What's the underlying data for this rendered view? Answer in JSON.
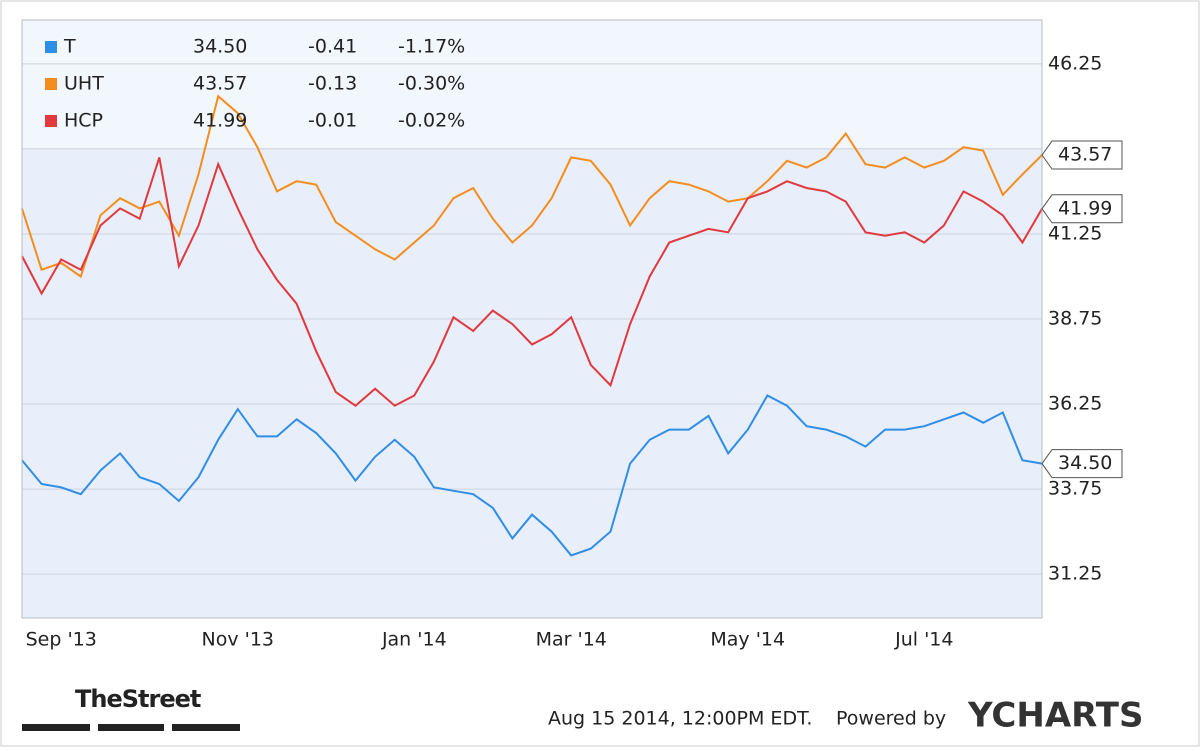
{
  "chart_data": {
    "type": "line",
    "categories": [
      null,
      null,
      "Sep '13",
      null,
      null,
      null,
      null,
      null,
      null,
      null,
      null,
      "Nov '13",
      null,
      null,
      null,
      null,
      null,
      null,
      null,
      null,
      "Jan '14",
      null,
      null,
      null,
      null,
      null,
      null,
      null,
      "Mar '14",
      null,
      null,
      null,
      null,
      null,
      null,
      null,
      null,
      "May '14",
      null,
      null,
      null,
      null,
      null,
      null,
      null,
      null,
      "Jul '14",
      null,
      null,
      null,
      null,
      null,
      null
    ],
    "ylim": [
      29.96,
      47.54
    ],
    "yticks": [
      31.25,
      33.75,
      36.25,
      38.75,
      41.25,
      43.75,
      46.25
    ],
    "grid": true,
    "series": [
      {
        "name": "T",
        "color": "#2f8ee5",
        "last_price": "34.50",
        "change": "-0.41",
        "change_pct": "-1.17%",
        "values": [
          34.6,
          33.9,
          33.8,
          33.6,
          34.3,
          34.8,
          34.1,
          33.9,
          33.4,
          34.1,
          35.2,
          36.1,
          35.3,
          35.3,
          35.8,
          35.4,
          34.8,
          34.0,
          34.7,
          35.2,
          34.7,
          33.8,
          33.7,
          33.6,
          33.2,
          32.3,
          33.0,
          32.5,
          31.8,
          32.0,
          32.5,
          34.5,
          35.2,
          35.5,
          35.5,
          35.9,
          34.8,
          35.5,
          36.5,
          36.2,
          35.6,
          35.5,
          35.3,
          35.0,
          35.5,
          35.5,
          35.6,
          35.8,
          36.0,
          35.7,
          36.0,
          34.6,
          34.5
        ]
      },
      {
        "name": "UHT",
        "color": "#f58d1e",
        "last_price": "43.57",
        "change": "-0.13",
        "change_pct": "-0.30%",
        "values": [
          42.0,
          40.2,
          40.4,
          40.0,
          41.8,
          42.3,
          42.0,
          42.2,
          41.2,
          43.0,
          45.3,
          44.8,
          43.8,
          42.5,
          42.8,
          42.7,
          41.6,
          41.2,
          40.8,
          40.5,
          41.0,
          41.5,
          42.3,
          42.6,
          41.7,
          41.0,
          41.5,
          42.3,
          43.5,
          43.4,
          42.7,
          41.5,
          42.3,
          42.8,
          42.7,
          42.5,
          42.2,
          42.3,
          42.8,
          43.4,
          43.2,
          43.5,
          44.2,
          43.3,
          43.2,
          43.5,
          43.2,
          43.4,
          43.8,
          43.7,
          42.4,
          43.0,
          43.57
        ]
      },
      {
        "name": "HCP",
        "color": "#e0393e",
        "last_price": "41.99",
        "change": "-0.01",
        "change_pct": "-0.02%",
        "values": [
          40.6,
          39.5,
          40.5,
          40.2,
          41.5,
          42.0,
          41.7,
          43.5,
          40.3,
          41.5,
          43.3,
          42.0,
          40.8,
          39.9,
          39.2,
          37.8,
          36.6,
          36.2,
          36.7,
          36.2,
          36.5,
          37.5,
          38.8,
          38.4,
          39.0,
          38.6,
          38.0,
          38.3,
          38.8,
          37.4,
          36.8,
          38.6,
          40.0,
          41.0,
          41.2,
          41.4,
          41.3,
          42.3,
          42.5,
          42.8,
          42.6,
          42.5,
          42.2,
          41.3,
          41.2,
          41.3,
          41.0,
          41.5,
          42.5,
          42.2,
          41.8,
          41.0,
          41.99
        ]
      }
    ]
  },
  "footer": {
    "brand": "TheStreet",
    "timestamp": "Aug 15 2014, 12:00PM EDT.",
    "powered": "Powered by",
    "logo": "YCHARTS"
  }
}
